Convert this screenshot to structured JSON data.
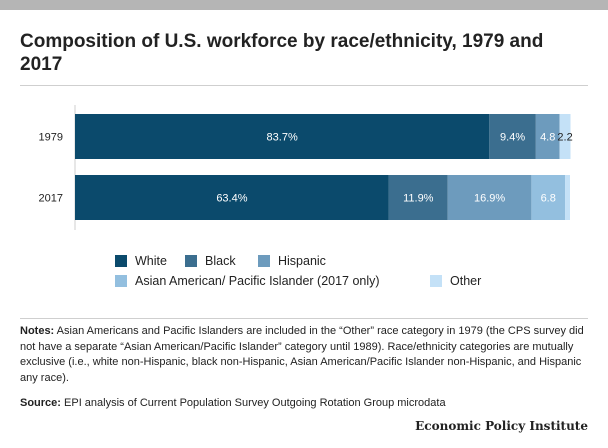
{
  "chart_data": {
    "type": "bar",
    "orientation": "horizontal",
    "stacked": true,
    "title": "Composition of U.S. workforce by race/ethnicity, 1979 and 2017",
    "categories": [
      "1979",
      "2017"
    ],
    "series": [
      {
        "name": "White",
        "values": [
          83.7,
          63.4
        ],
        "labels": [
          "83.7%",
          "63.4%"
        ],
        "color": "#0b4a6c"
      },
      {
        "name": "Black",
        "values": [
          9.4,
          11.9
        ],
        "labels": [
          "9.4%",
          "11.9%"
        ],
        "color": "#3b6e8f"
      },
      {
        "name": "Hispanic",
        "values": [
          4.8,
          16.9
        ],
        "labels": [
          "4.8",
          "16.9%"
        ],
        "color": "#6d9bbd"
      },
      {
        "name": "Asian American/ Pacific Islander (2017 only)",
        "values": [
          0,
          6.8
        ],
        "labels": [
          "",
          "6.8"
        ],
        "color": "#93bfdf"
      },
      {
        "name": "Other",
        "values": [
          2.2,
          1.0
        ],
        "labels": [
          "2.2",
          ""
        ],
        "color": "#c4e1f7"
      }
    ],
    "xlim": [
      0,
      100
    ],
    "grid": false,
    "legend_position": "bottom"
  },
  "notes_label": "Notes:",
  "notes_text": " Asian Americans and Pacific Islanders are included in the “Other” race category in 1979 (the CPS survey did not have a separate “Asian American/Pacific Islander” category until 1989). Race/ethnicity categories are mutually exclusive (i.e., white non-Hispanic, black non-Hispanic, Asian American/Pacific Islander non-Hispanic, and Hispanic any race).",
  "source_label": "Source:",
  "source_text": " EPI analysis of Current Population Survey Outgoing Rotation Group microdata",
  "brand": "Economic Policy Institute"
}
